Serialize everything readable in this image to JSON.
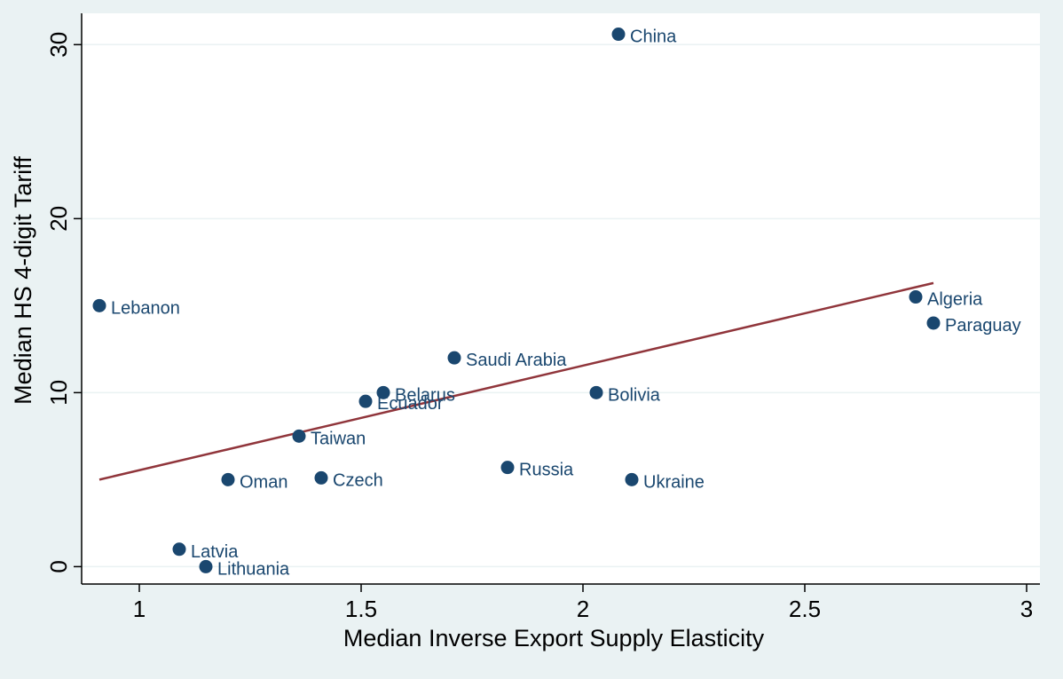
{
  "chart_data": {
    "type": "scatter",
    "title": "",
    "xlabel": "Median Inverse Export Supply Elasticity",
    "ylabel": "Median HS 4-digit Tariff",
    "xlim": [
      0.87,
      3.03
    ],
    "ylim": [
      -1.0,
      31.8
    ],
    "x_ticks": [
      1,
      1.5,
      2,
      2.5,
      3
    ],
    "x_tick_labels": [
      "1",
      "1.5",
      "2",
      "2.5",
      "3"
    ],
    "y_ticks": [
      0,
      10,
      20,
      30
    ],
    "y_tick_labels": [
      "0",
      "10",
      "20",
      "30"
    ],
    "grid": "horizontal",
    "legend": "none",
    "colors": {
      "marker": "#1a476f",
      "fit_line": "#90353b",
      "plot_bg": "#ffffff",
      "outer_bg": "#eaf2f3",
      "grid": "#eaf2f3"
    },
    "points": [
      {
        "label": "China",
        "x": 2.08,
        "y": 30.6
      },
      {
        "label": "Lebanon",
        "x": 0.91,
        "y": 15.0
      },
      {
        "label": "Algeria",
        "x": 2.75,
        "y": 15.5
      },
      {
        "label": "Paraguay",
        "x": 2.79,
        "y": 14.0
      },
      {
        "label": "Saudi Arabia",
        "x": 1.71,
        "y": 12.0
      },
      {
        "label": "Belarus",
        "x": 1.55,
        "y": 10.0
      },
      {
        "label": "Ecuador",
        "x": 1.51,
        "y": 9.5
      },
      {
        "label": "Bolivia",
        "x": 2.03,
        "y": 10.0
      },
      {
        "label": "Taiwan",
        "x": 1.36,
        "y": 7.5
      },
      {
        "label": "Oman",
        "x": 1.2,
        "y": 5.0
      },
      {
        "label": "Czech",
        "x": 1.41,
        "y": 5.1
      },
      {
        "label": "Russia",
        "x": 1.83,
        "y": 5.7
      },
      {
        "label": "Ukraine",
        "x": 2.11,
        "y": 5.0
      },
      {
        "label": "Latvia",
        "x": 1.09,
        "y": 1.0
      },
      {
        "label": "Lithuania",
        "x": 1.15,
        "y": 0.0
      }
    ],
    "fit_line": {
      "x": [
        0.91,
        2.79
      ],
      "y": [
        5.0,
        16.3
      ]
    }
  }
}
